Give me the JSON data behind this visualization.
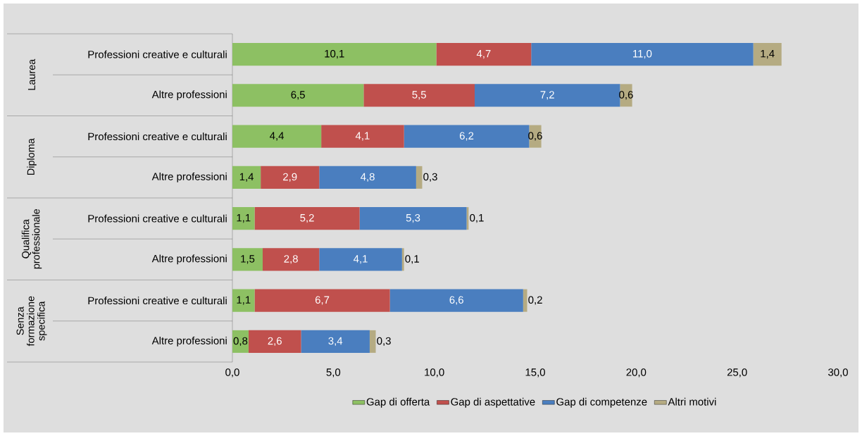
{
  "chart_data": {
    "type": "bar",
    "orientation": "horizontal",
    "stacked": true,
    "categories": [
      "Professioni creative e culturali",
      "Altre professioni",
      "Professioni creative e culturali",
      "Altre professioni",
      "Professioni creative e culturali",
      "Altre professioni",
      "Professioni creative e culturali",
      "Altre professioni"
    ],
    "annotations": [
      "Laurea",
      "Diploma",
      "Qualifica professionale",
      "Senza formazione specifica"
    ],
    "series": [
      {
        "name": "Gap di offerta",
        "color": "#8dc063",
        "values": [
          10.1,
          6.5,
          4.4,
          1.4,
          1.1,
          1.5,
          1.1,
          0.8
        ],
        "value_labels": [
          "10,1",
          "6,5",
          "4,4",
          "1,4",
          "1,1",
          "1,5",
          "1,1",
          "0,8"
        ]
      },
      {
        "name": "Gap di aspettative",
        "color": "#c0504d",
        "values": [
          4.7,
          5.5,
          4.1,
          2.9,
          5.2,
          2.8,
          6.7,
          2.6
        ],
        "value_labels": [
          "4,7",
          "5,5",
          "4,1",
          "2,9",
          "5,2",
          "2,8",
          "6,7",
          "2,6"
        ]
      },
      {
        "name": "Gap di competenze",
        "color": "#4a7ebf",
        "values": [
          11.0,
          7.2,
          6.2,
          4.8,
          5.3,
          4.1,
          6.6,
          3.4
        ],
        "value_labels": [
          "11,0",
          "7,2",
          "6,2",
          "4,8",
          "5,3",
          "4,1",
          "6,6",
          "3,4"
        ]
      },
      {
        "name": "Altri motivi",
        "color": "#b5ab82",
        "values": [
          1.4,
          0.6,
          0.6,
          0.3,
          0.1,
          0.1,
          0.2,
          0.3
        ],
        "value_labels": [
          "1,4",
          "0,6",
          "0,6",
          "0,3",
          "0,1",
          "0,1",
          "0,2",
          "0,3"
        ]
      }
    ],
    "xlim": [
      0,
      30
    ],
    "xticks": [
      {
        "value": 0,
        "label": "0,0"
      },
      {
        "value": 5,
        "label": "5,0"
      },
      {
        "value": 10,
        "label": "10,0"
      },
      {
        "value": 15,
        "label": "15,0"
      },
      {
        "value": 20,
        "label": "20,0"
      },
      {
        "value": 25,
        "label": "25,0"
      },
      {
        "value": 30,
        "label": "30,0"
      }
    ],
    "grid": false,
    "legend": "bottom"
  }
}
